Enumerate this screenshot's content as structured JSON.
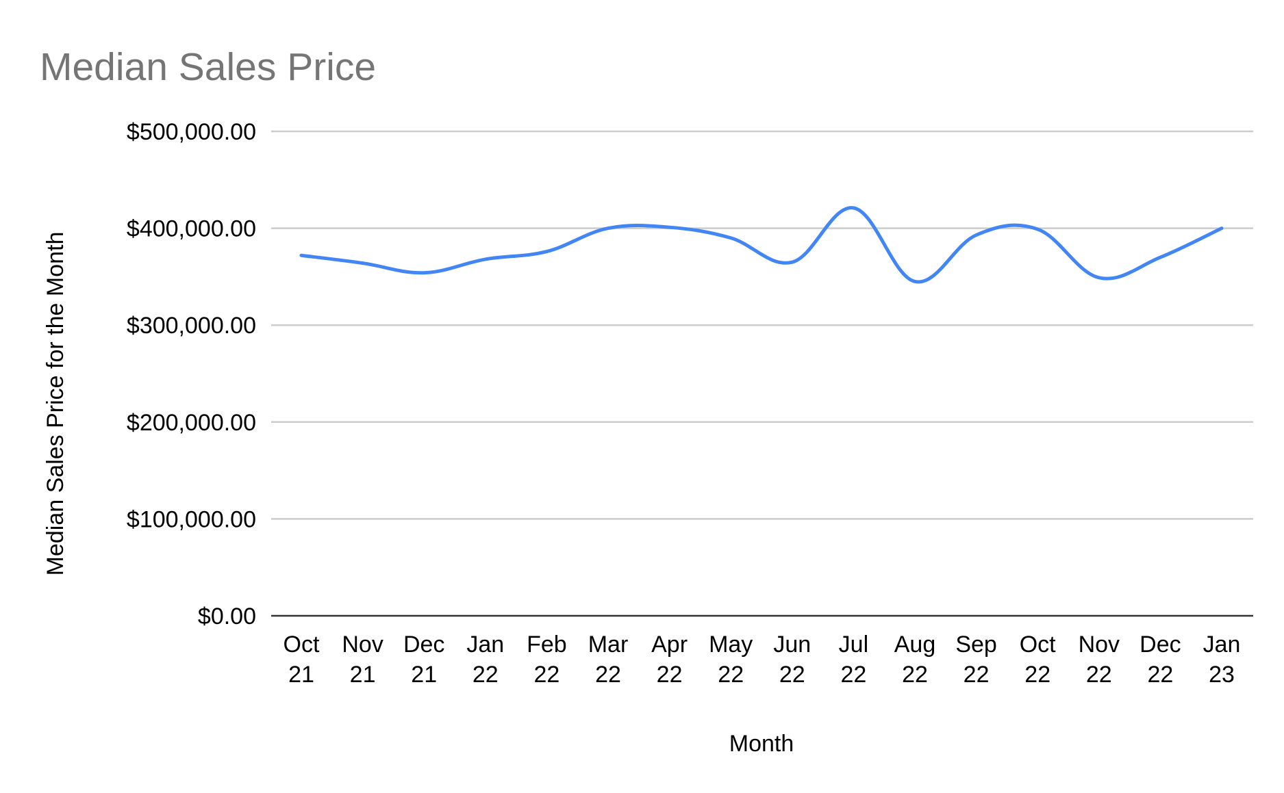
{
  "chart_data": {
    "type": "line",
    "title": "Median Sales Price",
    "xlabel": "Month",
    "ylabel": "Median Sales Price for the Month",
    "categories": [
      [
        "Oct",
        "21"
      ],
      [
        "Nov",
        "21"
      ],
      [
        "Dec",
        "21"
      ],
      [
        "Jan",
        "22"
      ],
      [
        "Feb",
        "22"
      ],
      [
        "Mar",
        "22"
      ],
      [
        "Apr",
        "22"
      ],
      [
        "May",
        "22"
      ],
      [
        "Jun",
        "22"
      ],
      [
        "Jul",
        "22"
      ],
      [
        "Aug",
        "22"
      ],
      [
        "Sep",
        "22"
      ],
      [
        "Oct",
        "22"
      ],
      [
        "Nov",
        "22"
      ],
      [
        "Dec",
        "22"
      ],
      [
        "Jan",
        "23"
      ]
    ],
    "series": [
      {
        "values": [
          372000,
          364000,
          354000,
          368000,
          376000,
          400000,
          401000,
          390000,
          365000,
          421000,
          345000,
          393000,
          399000,
          349000,
          370000,
          400000
        ]
      }
    ],
    "ylim": [
      0,
      500000
    ],
    "yticks": [
      0,
      100000,
      200000,
      300000,
      400000,
      500000
    ],
    "ytick_labels": [
      "$0.00",
      "$100,000.00",
      "$200,000.00",
      "$300,000.00",
      "$400,000.00",
      "$500,000.00"
    ],
    "grid": true,
    "legend": "none",
    "colors": {
      "series": "#4285f4",
      "grid": "#cccccc",
      "baseline": "#333333",
      "title": "#757575"
    }
  }
}
